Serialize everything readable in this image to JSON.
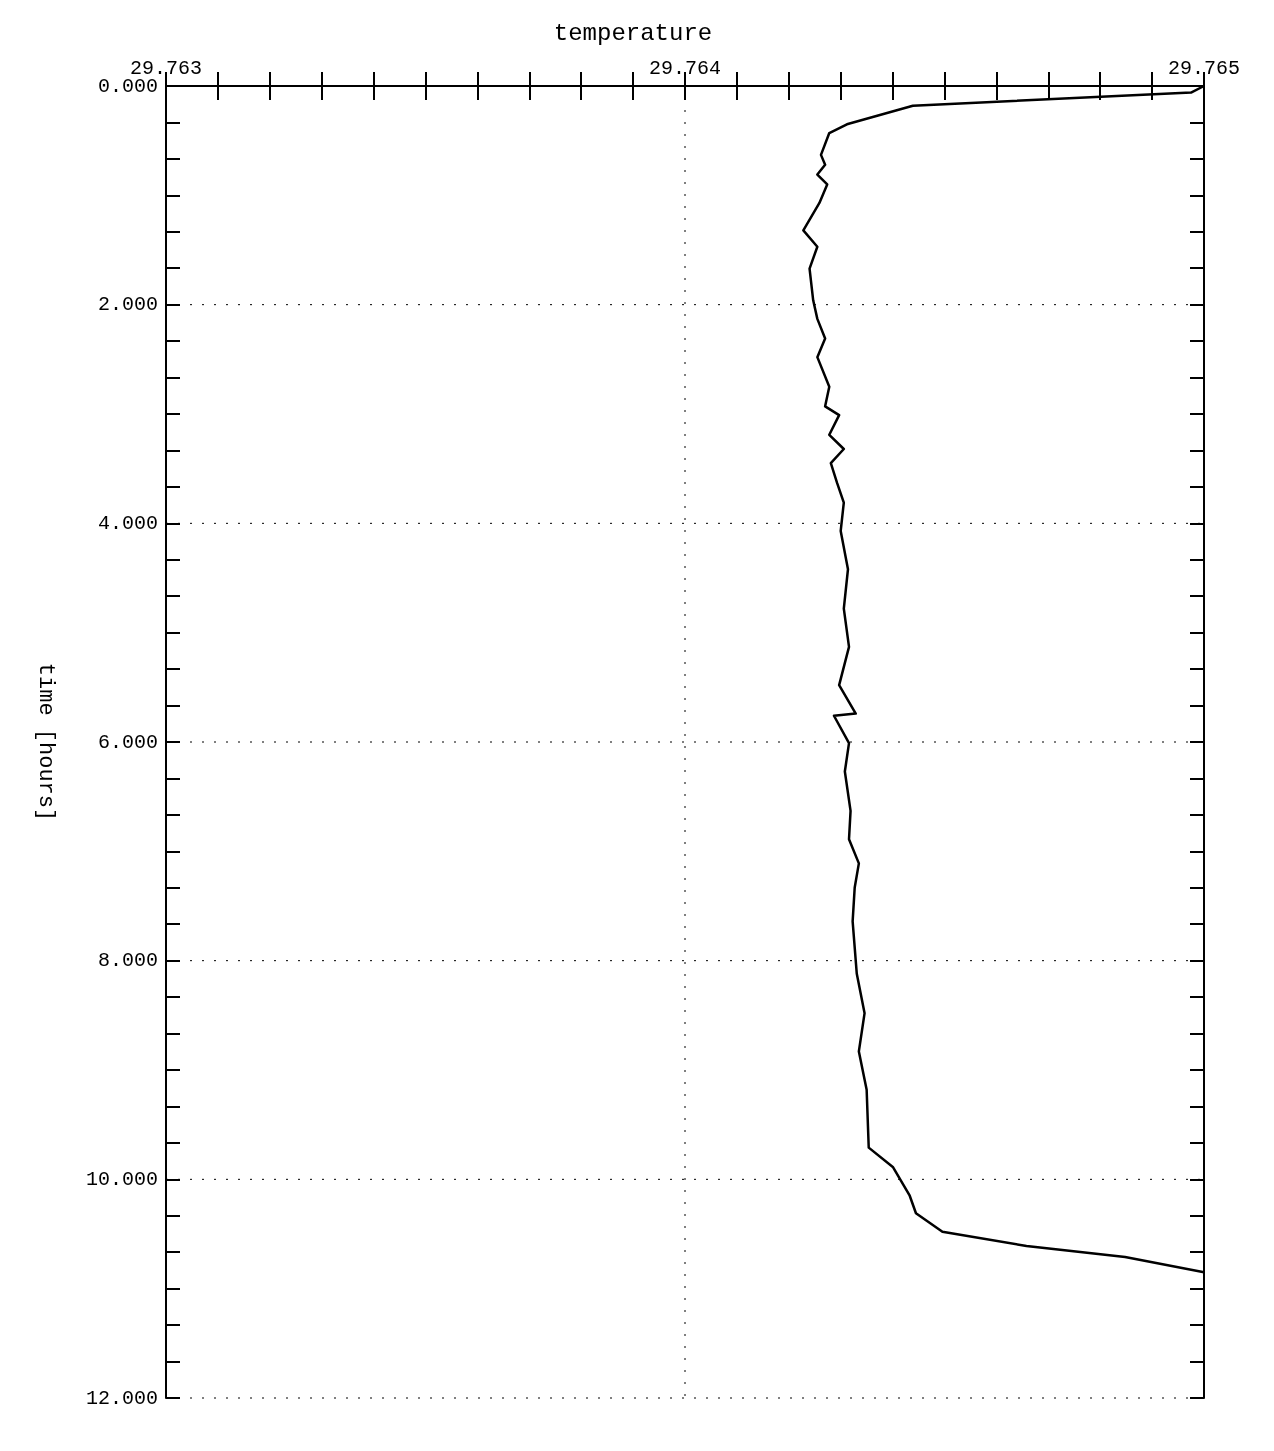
{
  "chart_data": {
    "type": "line",
    "title": "temperature",
    "ylabel": "time [hours]",
    "x": [
      29.765,
      29.764975,
      29.764439,
      29.764312,
      29.764278,
      29.764262,
      29.76427,
      29.764255,
      29.764274,
      29.764259,
      29.764228,
      29.764255,
      29.76424,
      29.764247,
      29.764255,
      29.76427,
      29.764255,
      29.764278,
      29.76427,
      29.764297,
      29.764278,
      29.764306,
      29.764281,
      29.764293,
      29.764306,
      29.7643,
      29.764314,
      29.764306,
      29.764316,
      29.764297,
      29.764329,
      29.764287,
      29.764316,
      29.764308,
      29.764319,
      29.764316,
      29.764335,
      29.764327,
      29.764323,
      29.764331,
      29.764346,
      29.764335,
      29.76435,
      29.764354,
      29.764401,
      29.764433,
      29.764445,
      29.764496,
      29.764658,
      29.764848,
      29.765
    ],
    "values": [
      0,
      0.06,
      0.18,
      0.35,
      0.43,
      0.63,
      0.72,
      0.81,
      0.9,
      1.07,
      1.32,
      1.47,
      1.67,
      1.96,
      2.13,
      2.31,
      2.48,
      2.75,
      2.93,
      3.01,
      3.19,
      3.32,
      3.45,
      3.63,
      3.81,
      4.07,
      4.42,
      4.78,
      5.13,
      5.48,
      5.74,
      5.76,
      6.01,
      6.27,
      6.63,
      6.89,
      7.11,
      7.33,
      7.64,
      8.12,
      8.48,
      8.83,
      9.18,
      9.71,
      9.89,
      10.15,
      10.31,
      10.48,
      10.61,
      10.71,
      10.85
    ],
    "color": "#000000",
    "marker": "none",
    "line_style": "solid",
    "grid": true,
    "xlim": [
      29.763,
      29.765
    ],
    "xticks": [
      {
        "value": 29.763,
        "label": "29.763"
      },
      {
        "value": 29.7631,
        "label": null
      },
      {
        "value": 29.7632,
        "label": null
      },
      {
        "value": 29.7633,
        "label": null
      },
      {
        "value": 29.7634,
        "label": null
      },
      {
        "value": 29.7635,
        "label": null
      },
      {
        "value": 29.7636,
        "label": null
      },
      {
        "value": 29.7637,
        "label": null
      },
      {
        "value": 29.7638,
        "label": null
      },
      {
        "value": 29.7639,
        "label": null
      },
      {
        "value": 29.764,
        "label": "29.764"
      },
      {
        "value": 29.7641,
        "label": null
      },
      {
        "value": 29.7642,
        "label": null
      },
      {
        "value": 29.7643,
        "label": null
      },
      {
        "value": 29.7644,
        "label": null
      },
      {
        "value": 29.7645,
        "label": null
      },
      {
        "value": 29.7646,
        "label": null
      },
      {
        "value": 29.7647,
        "label": null
      },
      {
        "value": 29.7648,
        "label": null
      },
      {
        "value": 29.7649,
        "label": null
      },
      {
        "value": 29.765,
        "label": "29.765"
      }
    ],
    "ylim": [
      12,
      0
    ],
    "yticks": [
      {
        "value": 0,
        "label": "0.000"
      },
      {
        "value": 0.3333,
        "label": null
      },
      {
        "value": 0.6667,
        "label": null
      },
      {
        "value": 1,
        "label": null
      },
      {
        "value": 1.3333,
        "label": null
      },
      {
        "value": 1.6667,
        "label": null
      },
      {
        "value": 2,
        "label": "2.000"
      },
      {
        "value": 2.3333,
        "label": null
      },
      {
        "value": 2.6667,
        "label": null
      },
      {
        "value": 3,
        "label": null
      },
      {
        "value": 3.3333,
        "label": null
      },
      {
        "value": 3.6667,
        "label": null
      },
      {
        "value": 4,
        "label": "4.000"
      },
      {
        "value": 4.3333,
        "label": null
      },
      {
        "value": 4.6667,
        "label": null
      },
      {
        "value": 5,
        "label": null
      },
      {
        "value": 5.3333,
        "label": null
      },
      {
        "value": 5.6667,
        "label": null
      },
      {
        "value": 6,
        "label": "6.000"
      },
      {
        "value": 6.3333,
        "label": null
      },
      {
        "value": 6.6667,
        "label": null
      },
      {
        "value": 7,
        "label": null
      },
      {
        "value": 7.3333,
        "label": null
      },
      {
        "value": 7.6667,
        "label": null
      },
      {
        "value": 8,
        "label": "8.000"
      },
      {
        "value": 8.3333,
        "label": null
      },
      {
        "value": 8.6667,
        "label": null
      },
      {
        "value": 9,
        "label": null
      },
      {
        "value": 9.3333,
        "label": null
      },
      {
        "value": 9.6667,
        "label": null
      },
      {
        "value": 10,
        "label": "10.000"
      },
      {
        "value": 10.3333,
        "label": null
      },
      {
        "value": 10.6667,
        "label": null
      },
      {
        "value": 11,
        "label": null
      },
      {
        "value": 11.3333,
        "label": null
      },
      {
        "value": 11.6667,
        "label": null
      },
      {
        "value": 12,
        "label": "12.000"
      }
    ]
  }
}
